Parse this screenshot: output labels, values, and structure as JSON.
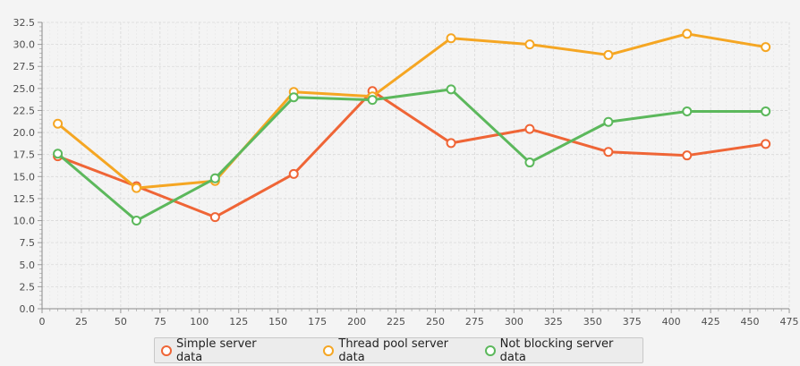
{
  "chart_data": {
    "type": "line",
    "xlim": [
      0,
      475
    ],
    "ylim": [
      0.0,
      32.5
    ],
    "x_ticks": [
      "0",
      "25",
      "50",
      "75",
      "100",
      "125",
      "150",
      "175",
      "200",
      "225",
      "250",
      "275",
      "300",
      "325",
      "350",
      "375",
      "400",
      "425",
      "450",
      "475"
    ],
    "y_ticks": [
      "0.0",
      "2.5",
      "5.0",
      "7.5",
      "10.0",
      "12.5",
      "15.0",
      "17.5",
      "20.0",
      "22.5",
      "25.0",
      "27.5",
      "30.0",
      "32.5"
    ],
    "grid": true,
    "legend_position": "bottom",
    "series": [
      {
        "name": "Simple server data",
        "color": "#ef6536",
        "x": [
          10,
          60,
          110,
          160,
          210,
          260,
          310,
          360,
          410,
          460
        ],
        "y": [
          17.3,
          13.9,
          10.4,
          15.3,
          24.7,
          18.8,
          20.4,
          17.8,
          17.4,
          18.7
        ]
      },
      {
        "name": "Thread pool server data",
        "color": "#f5a623",
        "x": [
          10,
          60,
          110,
          160,
          210,
          260,
          310,
          360,
          410,
          460
        ],
        "y": [
          21.0,
          13.7,
          14.5,
          24.6,
          24.1,
          30.7,
          30.0,
          28.8,
          31.2,
          29.7
        ]
      },
      {
        "name": "Not blocking server data",
        "color": "#5cb85c",
        "x": [
          10,
          60,
          110,
          160,
          210,
          260,
          310,
          360,
          410,
          460
        ],
        "y": [
          17.6,
          10.0,
          14.8,
          24.0,
          23.7,
          24.9,
          16.6,
          21.2,
          22.4,
          22.4
        ]
      }
    ]
  }
}
